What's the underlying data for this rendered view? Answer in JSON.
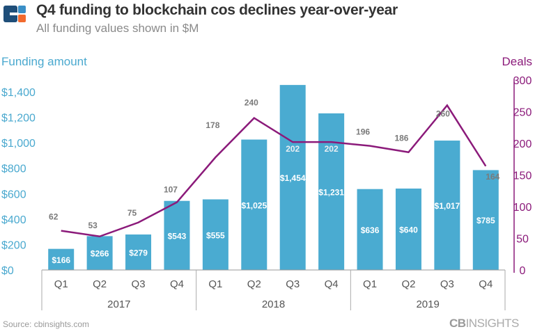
{
  "header": {
    "title": "Q4 funding to blockchain cos declines year-over-year",
    "subtitle": "All funding values shown in $M"
  },
  "footer": {
    "source": "Source: cbinsights.com",
    "brand_bold": "CB",
    "brand_rest": "INSIGHTS"
  },
  "colors": {
    "bar": "#4aabd1",
    "line": "#8b1a7a",
    "left_axis": "#4aa9cf",
    "right_axis": "#8b1a7a",
    "deal_label": "#7a7a7a"
  },
  "chart_data": {
    "type": "bar",
    "title": "Q4 funding to blockchain cos declines year-over-year",
    "subtitle": "All funding values shown in $M",
    "categories": [
      "Q1",
      "Q2",
      "Q3",
      "Q4",
      "Q1",
      "Q2",
      "Q3",
      "Q4",
      "Q1",
      "Q2",
      "Q3",
      "Q4"
    ],
    "groups": [
      {
        "label": "2017",
        "count": 4
      },
      {
        "label": "2018",
        "count": 4
      },
      {
        "label": "2019",
        "count": 4
      }
    ],
    "ylabel": "Funding amount",
    "y2label": "Deals",
    "ylim": [
      0,
      1400
    ],
    "y2lim": [
      0,
      300
    ],
    "yticks": [
      "$0",
      "$200",
      "$400",
      "$600",
      "$800",
      "$1,000",
      "$1,200",
      "$1,400"
    ],
    "y2ticks": [
      "0",
      "50",
      "100",
      "150",
      "200",
      "250",
      "300"
    ],
    "series": [
      {
        "name": "Funding amount",
        "type": "bar",
        "values": [
          166,
          266,
          279,
          543,
          555,
          1025,
          1454,
          1231,
          636,
          640,
          1017,
          785
        ],
        "labels": [
          "$166",
          "$266",
          "$279",
          "$543",
          "$555",
          "$1,025",
          "$1,454",
          "$1,231",
          "$636",
          "$640",
          "$1,017",
          "$785"
        ]
      },
      {
        "name": "Deals",
        "type": "line",
        "axis": "right",
        "values": [
          62,
          53,
          75,
          107,
          178,
          240,
          202,
          202,
          196,
          186,
          260,
          164
        ]
      }
    ],
    "grid": false
  }
}
